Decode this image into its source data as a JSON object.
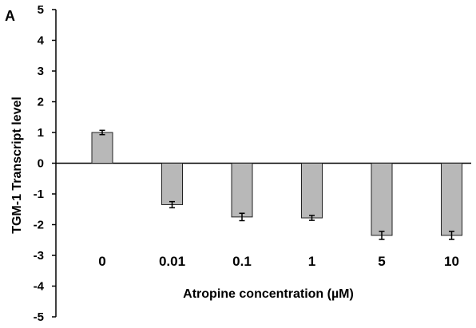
{
  "chart_data": {
    "type": "bar",
    "panel_label": "A",
    "categories": [
      "0",
      "0.01",
      "0.1",
      "1",
      "5",
      "10"
    ],
    "values": [
      1.0,
      -1.35,
      -1.75,
      -1.78,
      -2.35,
      -2.35
    ],
    "errors": [
      0.07,
      0.1,
      0.12,
      0.08,
      0.13,
      0.13
    ],
    "xlabel": "Atropine concentration (µM)",
    "ylabel": "TGM-1 Transcript level",
    "ylim": [
      -5,
      5
    ],
    "yticks": [
      "-5",
      "-4",
      "-3",
      "-2",
      "-1",
      "0",
      "1",
      "2",
      "3",
      "4",
      "5"
    ],
    "grid": false,
    "bar_color": "#b8b8b8"
  }
}
